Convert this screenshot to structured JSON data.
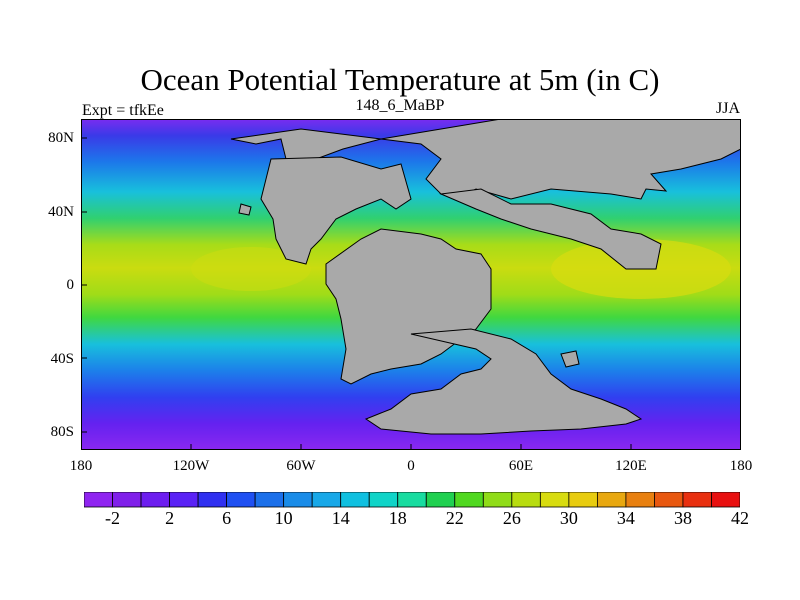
{
  "title": "Ocean Potential Temperature at 5m (in C)",
  "subtitle_left": "Expt = tfkEe",
  "subtitle_center": "148_6_MaBP",
  "subtitle_right": "JJA",
  "y_ticks": [
    "80N",
    "40N",
    "0",
    "40S",
    "80S"
  ],
  "x_ticks": [
    "180",
    "120W",
    "60W",
    "0",
    "60E",
    "120E",
    "180"
  ],
  "colorbar_labels": [
    "-2",
    "2",
    "6",
    "10",
    "14",
    "18",
    "22",
    "26",
    "30",
    "34",
    "38",
    "42"
  ],
  "colorbar_colors": [
    "#8f24f0",
    "#8020ea",
    "#6d1eef",
    "#5a22f5",
    "#3030f0",
    "#1f50f2",
    "#1c70ea",
    "#1a8ce8",
    "#18a8e8",
    "#10c0e0",
    "#10d4c8",
    "#18dca0",
    "#20d050",
    "#50d820",
    "#90dc18",
    "#b8dc10",
    "#d8dc10",
    "#e8cc10",
    "#e8a810",
    "#e88010",
    "#e85810",
    "#e83010",
    "#e81010"
  ],
  "land_color": "#a9a9a9"
}
